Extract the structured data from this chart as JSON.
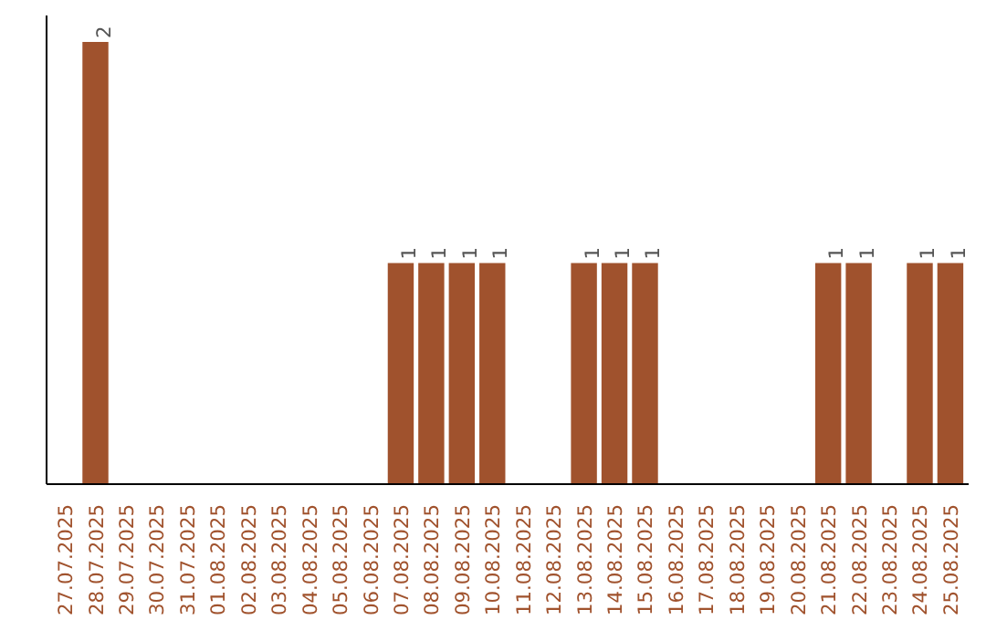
{
  "chart_data": {
    "type": "bar",
    "categories": [
      "27.07.2025",
      "28.07.2025",
      "29.07.2025",
      "30.07.2025",
      "31.07.2025",
      "01.08.2025",
      "02.08.2025",
      "03.08.2025",
      "04.08.2025",
      "05.08.2025",
      "06.08.2025",
      "07.08.2025",
      "08.08.2025",
      "09.08.2025",
      "10.08.2025",
      "11.08.2025",
      "12.08.2025",
      "13.08.2025",
      "14.08.2025",
      "15.08.2025",
      "16.08.2025",
      "17.08.2025",
      "18.08.2025",
      "19.08.2025",
      "20.08.2025",
      "21.08.2025",
      "22.08.2025",
      "23.08.2025",
      "24.08.2025",
      "25.08.2025"
    ],
    "values": [
      0,
      2,
      0,
      0,
      0,
      0,
      0,
      0,
      0,
      0,
      0,
      1,
      1,
      1,
      1,
      0,
      0,
      1,
      1,
      1,
      0,
      0,
      0,
      0,
      0,
      1,
      1,
      0,
      1,
      1
    ],
    "value_labels": [
      null,
      "2",
      null,
      null,
      null,
      null,
      null,
      null,
      null,
      null,
      null,
      "1",
      "1",
      "1",
      "1",
      null,
      null,
      "1",
      "1",
      "1",
      null,
      null,
      null,
      null,
      null,
      "1",
      "1",
      null,
      "1",
      "1"
    ],
    "color": "#a0522d",
    "tick_labels": "x",
    "grid": false
  }
}
